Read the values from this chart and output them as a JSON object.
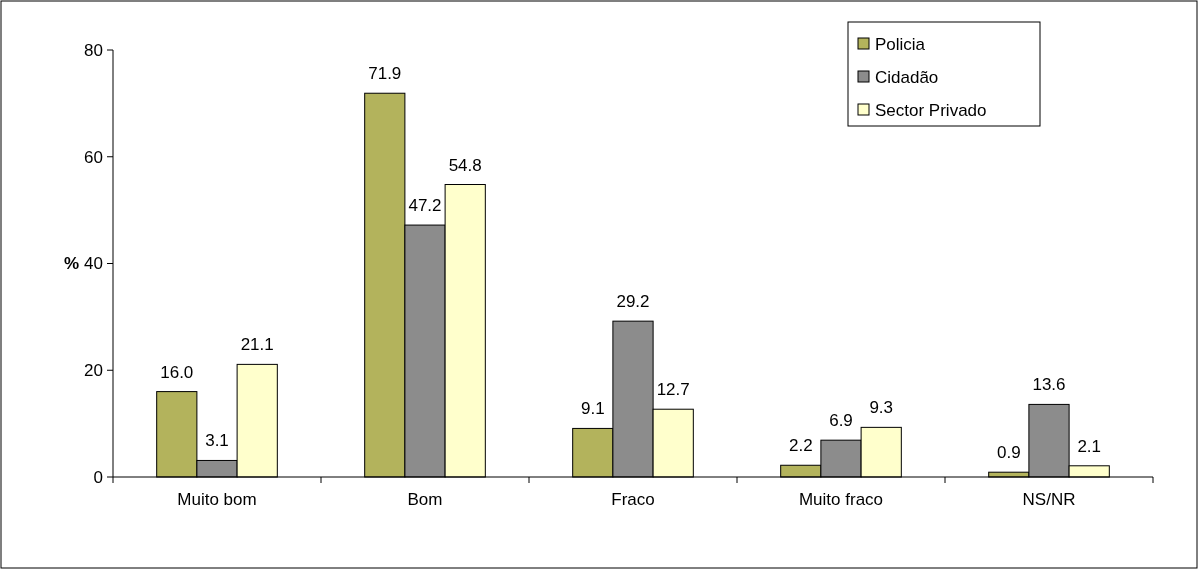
{
  "chart_data": {
    "type": "bar",
    "ylabel": "%",
    "categories": [
      "Muito bom",
      "Bom",
      "Fraco",
      "Muito fraco",
      "NS/NR"
    ],
    "series": [
      {
        "name": "Policia",
        "color": "#b3b35c",
        "values": [
          16.0,
          71.9,
          9.1,
          2.2,
          0.9
        ],
        "value_labels": [
          "16.0",
          "71.9",
          "9.1",
          "2.2",
          "0.9"
        ]
      },
      {
        "name": "Cidadão",
        "color": "#8c8c8c",
        "values": [
          3.1,
          47.2,
          29.2,
          6.9,
          13.6
        ],
        "value_labels": [
          "3.1",
          "47.2",
          "29.2",
          "6.9",
          "13.6"
        ]
      },
      {
        "name": "Sector Privado",
        "color": "#ffffcc",
        "values": [
          21.1,
          54.8,
          12.7,
          9.3,
          2.1
        ],
        "value_labels": [
          "21.1",
          "54.8",
          "12.7",
          "9.3",
          "2.1"
        ]
      }
    ],
    "ylim": [
      0,
      80
    ],
    "yticks": [
      0,
      20,
      40,
      60,
      80
    ],
    "legend": "top right",
    "grid": false
  }
}
